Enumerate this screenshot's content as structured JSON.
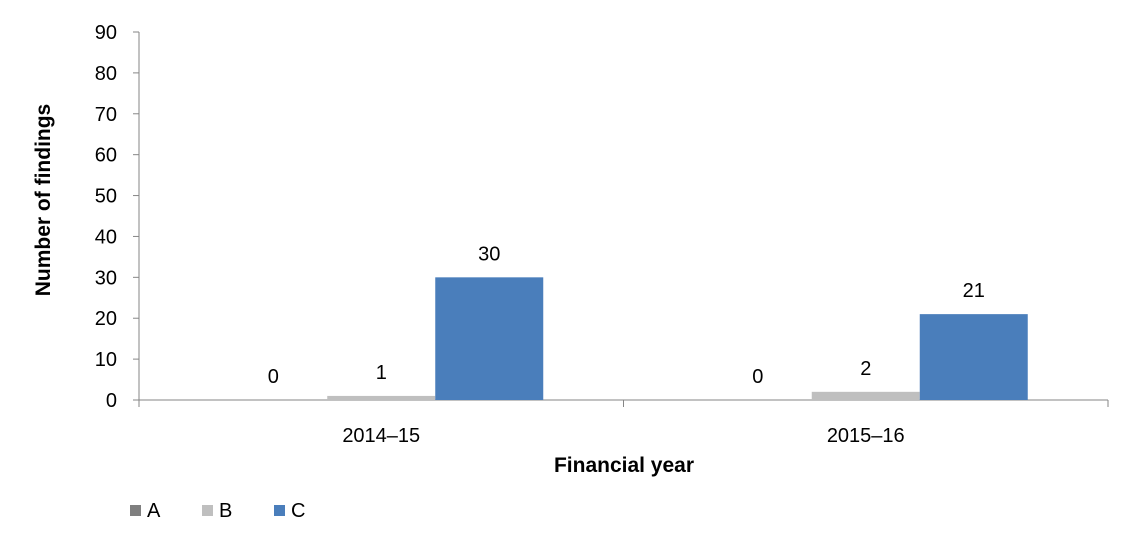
{
  "chart_data": {
    "type": "bar",
    "categories": [
      "2014–15",
      "2015–16"
    ],
    "series": [
      {
        "name": "A",
        "values": [
          0,
          0
        ],
        "color": "#7f7f7f"
      },
      {
        "name": "B",
        "values": [
          1,
          2
        ],
        "color": "#bfbfbf"
      },
      {
        "name": "C",
        "values": [
          30,
          21
        ],
        "color": "#4a7ebb"
      }
    ],
    "xlabel": "Financial year",
    "ylabel": "Number of findings",
    "ylim": [
      0,
      90
    ],
    "yticks": [
      0,
      10,
      20,
      30,
      40,
      50,
      60,
      70,
      80,
      90
    ],
    "grid": false,
    "legend_position": "bottom-left",
    "data_labels": true
  }
}
